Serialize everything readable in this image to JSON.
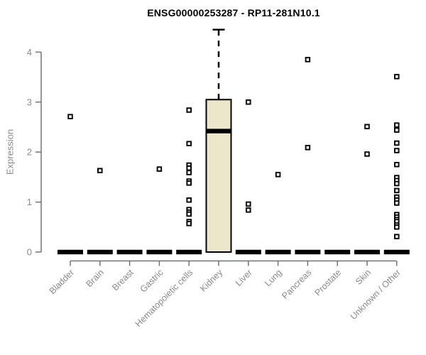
{
  "chart_data": {
    "type": "boxplot-scatter",
    "title": "ENSG00000253287 - RP11-281N10.1",
    "xlabel": "",
    "ylabel": "Expression",
    "ylim": [
      0,
      4.45
    ],
    "yticks": [
      0,
      1,
      2,
      3,
      4
    ],
    "grid": false,
    "legend": "none",
    "marker": "open-square",
    "categories": [
      "Bladder",
      "Brain",
      "Breast",
      "Gastric",
      "Hematopoietic cells",
      "Kidney",
      "Liver",
      "Lung",
      "Pancreas",
      "Prostate",
      "Skin",
      "Unknown / Other"
    ],
    "series": [
      {
        "name": "Bladder",
        "zero_bar": true,
        "points": [
          2.71
        ]
      },
      {
        "name": "Brain",
        "zero_bar": true,
        "points": [
          1.63
        ]
      },
      {
        "name": "Breast",
        "zero_bar": true,
        "points": []
      },
      {
        "name": "Gastric",
        "zero_bar": true,
        "points": [
          1.66
        ]
      },
      {
        "name": "Hematopoietic cells",
        "zero_bar": true,
        "points": [
          2.84,
          2.17,
          1.74,
          1.68,
          1.59,
          1.42,
          1.38,
          1.04,
          0.85,
          0.8,
          0.76,
          0.61,
          0.57
        ]
      },
      {
        "name": "Kidney",
        "zero_bar": false,
        "points": [],
        "box": {
          "q1": 0,
          "median": 2.42,
          "q3": 3.05,
          "whisker_low": 0,
          "whisker_high": 4.45
        }
      },
      {
        "name": "Liver",
        "zero_bar": true,
        "points": [
          3.0,
          0.96,
          0.84
        ]
      },
      {
        "name": "Lung",
        "zero_bar": true,
        "points": [
          1.55
        ]
      },
      {
        "name": "Pancreas",
        "zero_bar": true,
        "points": [
          3.85,
          2.09
        ]
      },
      {
        "name": "Prostate",
        "zero_bar": true,
        "points": []
      },
      {
        "name": "Skin",
        "zero_bar": true,
        "points": [
          2.51,
          1.96
        ]
      },
      {
        "name": "Unknown / Other",
        "zero_bar": true,
        "points": [
          3.51,
          2.54,
          2.44,
          2.18,
          2.03,
          1.75,
          1.49,
          1.43,
          1.37,
          1.23,
          1.1,
          1.04,
          0.98,
          0.75,
          0.7,
          0.65,
          0.61,
          0.54,
          0.5,
          0.31
        ]
      }
    ],
    "colors": {
      "box_fill": "#ECE7CB",
      "box_stroke": "#000000",
      "point": "#000000",
      "zero_bar": "#000000",
      "axis": "#737373",
      "tick_label": "#8a8a8a",
      "category_label": "#8a8a8a",
      "title": "#000000",
      "background": "#ffffff"
    }
  }
}
